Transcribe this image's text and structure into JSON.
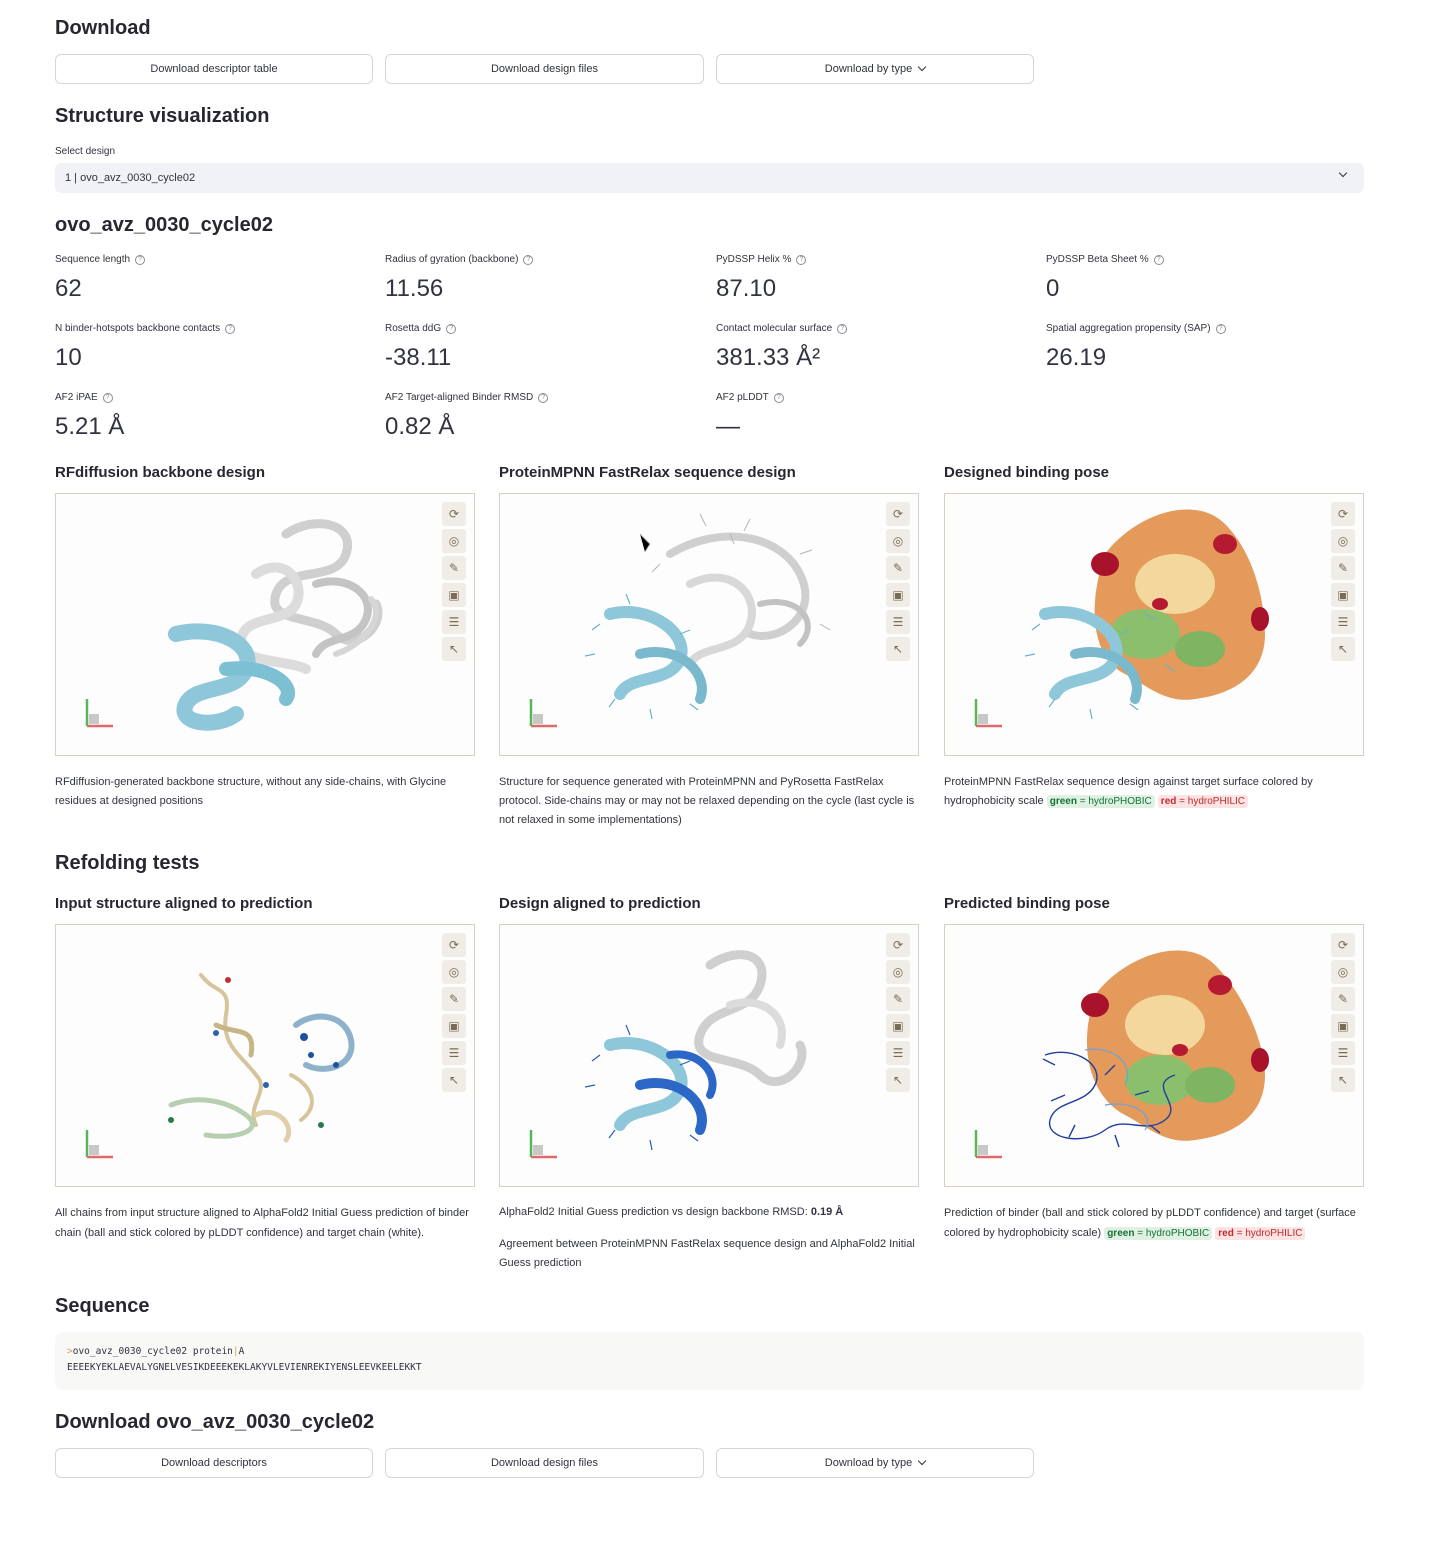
{
  "download": {
    "title": "Download",
    "buttons": [
      "Download descriptor table",
      "Download design files",
      "Download by type"
    ]
  },
  "structure": {
    "title": "Structure visualization",
    "select_label": "Select design",
    "select_value": "1 | ovo_avz_0030_cycle02"
  },
  "design": {
    "name": "ovo_avz_0030_cycle02",
    "metrics": [
      {
        "label": "Sequence length",
        "value": "62"
      },
      {
        "label": "Radius of gyration (backbone)",
        "value": "11.56"
      },
      {
        "label": "PyDSSP Helix %",
        "value": "87.10"
      },
      {
        "label": "PyDSSP Beta Sheet %",
        "value": "0"
      },
      {
        "label": "N binder-hotspots backbone contacts",
        "value": "10"
      },
      {
        "label": "Rosetta ddG",
        "value": "-38.11"
      },
      {
        "label": "Contact molecular surface",
        "value": "381.33 Å²"
      },
      {
        "label": "Spatial aggregation propensity (SAP)",
        "value": "26.19"
      },
      {
        "label": "AF2 iPAE",
        "value": "5.21 Å"
      },
      {
        "label": "AF2 Target-aligned Binder RMSD",
        "value": "0.82 Å"
      },
      {
        "label": "AF2 pLDDT",
        "value": "—"
      }
    ]
  },
  "panels_top": [
    {
      "title": "RFdiffusion backbone design",
      "caption": "RFdiffusion-generated backbone structure, without any side-chains, with Glycine residues at designed positions"
    },
    {
      "title": "ProteinMPNN FastRelax sequence design",
      "caption": "Structure for sequence generated with ProteinMPNN and PyRosetta FastRelax protocol. Side-chains may or may not be relaxed depending on the cycle (last cycle is not relaxed in some implementations)"
    },
    {
      "title": "Designed binding pose",
      "caption": "ProteinMPNN FastRelax sequence design against target surface colored by hydrophobicity scale"
    }
  ],
  "legend": {
    "green_key": "green",
    "green_text": " = hydroPHOBIC",
    "red_key": "red",
    "red_text": " = hydroPHILIC"
  },
  "refolding": {
    "title": "Refolding tests",
    "panels": [
      {
        "title": "Input structure aligned to prediction",
        "caption": "All chains from input structure aligned to AlphaFold2 Initial Guess prediction of binder chain (ball and stick colored by pLDDT confidence) and target chain (white)."
      },
      {
        "title": "Design aligned to prediction",
        "caption_prefix": "AlphaFold2 Initial Guess prediction vs design backbone RMSD: ",
        "rmsd": "0.19 Å",
        "caption2": "Agreement between ProteinMPNN FastRelax sequence design and AlphaFold2 Initial Guess prediction"
      },
      {
        "title": "Predicted binding pose",
        "caption": "Prediction of binder (ball and stick colored by pLDDT confidence) and target (surface colored by hydrophobicity scale)"
      }
    ]
  },
  "sequence": {
    "title": "Sequence",
    "header_marker": ">",
    "header_name": "ovo_avz_0030_cycle02 protein",
    "header_sep": "|",
    "header_chain": "A",
    "seq": "EEEEKYEKLAEVALYGNELVESIKDEEEKEKLAKYVLEVIENREKIYENSLEEVKEELEKKT"
  },
  "download2": {
    "title": "Download ovo_avz_0030_cycle02",
    "buttons": [
      "Download descriptors",
      "Download design files",
      "Download by type"
    ]
  },
  "viewer_tools": [
    "rotate-icon",
    "center-icon",
    "wrench-icon",
    "screenshot-icon",
    "settings-icon",
    "cursor-icon"
  ]
}
